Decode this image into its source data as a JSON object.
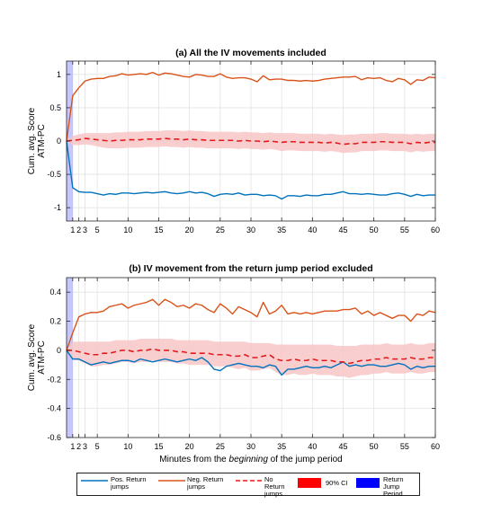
{
  "chart_data": [
    {
      "type": "line",
      "title": "(a) All the IV movements included",
      "ylabel_lines": [
        "Cum. avg. Score",
        "ATM-PC"
      ],
      "xlabel": "",
      "xlabel_suffix": "",
      "xlim": [
        0,
        60
      ],
      "ylim": [
        -1.2,
        1.2
      ],
      "xticks": [
        1,
        2,
        3,
        5,
        10,
        15,
        20,
        25,
        30,
        35,
        40,
        45,
        50,
        55,
        60
      ],
      "yticks": [
        -1,
        -0.5,
        0,
        0.5,
        1
      ],
      "ytick_labels": [
        "-1",
        "-0.5",
        "0",
        "0.5",
        "1"
      ],
      "grid": true,
      "jump_period": [
        0,
        1
      ],
      "series": [
        {
          "key": "pos",
          "color": "#0072BD",
          "values": [
            0,
            -0.7,
            -0.76,
            -0.77,
            -0.77,
            -0.79,
            -0.81,
            -0.79,
            -0.8,
            -0.78,
            -0.78,
            -0.79,
            -0.78,
            -0.77,
            -0.78,
            -0.77,
            -0.76,
            -0.78,
            -0.79,
            -0.78,
            -0.76,
            -0.78,
            -0.77,
            -0.79,
            -0.83,
            -0.8,
            -0.79,
            -0.8,
            -0.78,
            -0.81,
            -0.8,
            -0.8,
            -0.82,
            -0.81,
            -0.82,
            -0.87,
            -0.82,
            -0.82,
            -0.83,
            -0.81,
            -0.82,
            -0.82,
            -0.8,
            -0.8,
            -0.78,
            -0.76,
            -0.79,
            -0.79,
            -0.8,
            -0.79,
            -0.8,
            -0.81,
            -0.81,
            -0.79,
            -0.78,
            -0.8,
            -0.83,
            -0.8,
            -0.82,
            -0.81,
            -0.81
          ]
        },
        {
          "key": "neg",
          "color": "#D95319",
          "values": [
            0,
            0.68,
            0.8,
            0.9,
            0.93,
            0.94,
            0.94,
            0.97,
            0.98,
            1.01,
            0.99,
            1.0,
            1.01,
            1.0,
            1.03,
            0.99,
            1.02,
            1.01,
            0.99,
            0.97,
            0.96,
            1.0,
            0.99,
            0.97,
            0.97,
            1.01,
            0.96,
            0.94,
            0.95,
            0.95,
            0.93,
            0.89,
            0.98,
            0.92,
            0.93,
            0.93,
            0.91,
            0.91,
            0.9,
            0.91,
            0.9,
            0.91,
            0.93,
            0.94,
            0.95,
            0.96,
            0.96,
            0.97,
            0.92,
            0.95,
            0.94,
            0.95,
            0.91,
            0.89,
            0.94,
            0.92,
            0.85,
            0.92,
            0.91,
            0.96,
            0.95
          ]
        },
        {
          "key": "none",
          "color": "#E31A1C",
          "dashed": true,
          "values": [
            0,
            0.01,
            0.02,
            0.04,
            0.03,
            0.02,
            0.01,
            0.0,
            0.01,
            0.01,
            0.02,
            0.02,
            0.02,
            0.03,
            0.03,
            0.03,
            0.04,
            0.03,
            0.03,
            0.02,
            0.03,
            0.02,
            0.02,
            0.01,
            0.01,
            0.01,
            0.01,
            0.01,
            0.0,
            0.01,
            0.0,
            0.0,
            -0.01,
            0.0,
            -0.01,
            -0.02,
            -0.01,
            -0.01,
            -0.02,
            -0.02,
            -0.02,
            -0.02,
            -0.03,
            -0.02,
            -0.03,
            -0.05,
            -0.04,
            -0.04,
            -0.02,
            -0.02,
            -0.02,
            -0.01,
            -0.01,
            -0.02,
            -0.02,
            -0.02,
            -0.04,
            -0.02,
            -0.03,
            -0.02,
            -0.02
          ]
        },
        {
          "key": "ci",
          "color": "#F7C6C7",
          "upper": [
            0,
            0.08,
            0.1,
            0.12,
            0.12,
            0.12,
            0.12,
            0.12,
            0.13,
            0.13,
            0.14,
            0.14,
            0.14,
            0.15,
            0.15,
            0.15,
            0.16,
            0.16,
            0.16,
            0.15,
            0.16,
            0.15,
            0.15,
            0.14,
            0.14,
            0.14,
            0.14,
            0.14,
            0.13,
            0.14,
            0.13,
            0.13,
            0.12,
            0.13,
            0.12,
            0.12,
            0.12,
            0.12,
            0.11,
            0.11,
            0.11,
            0.11,
            0.1,
            0.11,
            0.1,
            0.09,
            0.1,
            0.1,
            0.11,
            0.11,
            0.11,
            0.12,
            0.12,
            0.11,
            0.11,
            0.11,
            0.1,
            0.11,
            0.1,
            0.11,
            0.11
          ],
          "lower": [
            0,
            -0.06,
            -0.06,
            -0.05,
            -0.06,
            -0.08,
            -0.1,
            -0.11,
            -0.11,
            -0.11,
            -0.1,
            -0.1,
            -0.1,
            -0.09,
            -0.09,
            -0.09,
            -0.08,
            -0.09,
            -0.09,
            -0.1,
            -0.09,
            -0.1,
            -0.1,
            -0.11,
            -0.11,
            -0.11,
            -0.11,
            -0.11,
            -0.12,
            -0.11,
            -0.12,
            -0.12,
            -0.13,
            -0.12,
            -0.13,
            -0.15,
            -0.14,
            -0.14,
            -0.15,
            -0.15,
            -0.15,
            -0.15,
            -0.16,
            -0.15,
            -0.16,
            -0.18,
            -0.17,
            -0.17,
            -0.15,
            -0.15,
            -0.15,
            -0.14,
            -0.14,
            -0.15,
            -0.15,
            -0.15,
            -0.17,
            -0.15,
            -0.16,
            -0.15,
            -0.15
          ]
        }
      ]
    },
    {
      "type": "line",
      "title": "(b) IV movement from the return jump period excluded",
      "ylabel_lines": [
        "Cum. avg. Score",
        "ATM-PC"
      ],
      "xlabel": "Minutes from the ",
      "xlabel_italic": "beginning",
      "xlabel_suffix": " of the jump period",
      "xlim": [
        0,
        60
      ],
      "ylim": [
        -0.6,
        0.5
      ],
      "xticks": [
        1,
        2,
        3,
        5,
        10,
        15,
        20,
        25,
        30,
        35,
        40,
        45,
        50,
        55,
        60
      ],
      "yticks": [
        -0.6,
        -0.4,
        -0.2,
        0,
        0.2,
        0.4
      ],
      "ytick_labels": [
        "-0.6",
        "-0.4",
        "-0.2",
        "0",
        "0.2",
        "0.4"
      ],
      "grid": true,
      "jump_period": [
        0,
        1
      ],
      "series": [
        {
          "key": "pos",
          "color": "#0072BD",
          "values": [
            0,
            -0.06,
            -0.06,
            -0.08,
            -0.1,
            -0.09,
            -0.08,
            -0.09,
            -0.08,
            -0.07,
            -0.07,
            -0.08,
            -0.06,
            -0.07,
            -0.08,
            -0.07,
            -0.06,
            -0.07,
            -0.08,
            -0.07,
            -0.06,
            -0.07,
            -0.05,
            -0.08,
            -0.13,
            -0.14,
            -0.11,
            -0.1,
            -0.09,
            -0.1,
            -0.11,
            -0.11,
            -0.12,
            -0.1,
            -0.11,
            -0.17,
            -0.13,
            -0.13,
            -0.12,
            -0.11,
            -0.12,
            -0.12,
            -0.11,
            -0.12,
            -0.1,
            -0.08,
            -0.11,
            -0.1,
            -0.11,
            -0.1,
            -0.1,
            -0.11,
            -0.11,
            -0.1,
            -0.09,
            -0.1,
            -0.13,
            -0.11,
            -0.12,
            -0.11,
            -0.11
          ]
        },
        {
          "key": "neg",
          "color": "#D95319",
          "values": [
            0,
            0.12,
            0.23,
            0.25,
            0.26,
            0.26,
            0.27,
            0.3,
            0.31,
            0.32,
            0.29,
            0.31,
            0.32,
            0.33,
            0.35,
            0.31,
            0.35,
            0.33,
            0.3,
            0.31,
            0.29,
            0.32,
            0.31,
            0.28,
            0.26,
            0.32,
            0.29,
            0.25,
            0.3,
            0.28,
            0.26,
            0.23,
            0.33,
            0.25,
            0.27,
            0.31,
            0.25,
            0.26,
            0.25,
            0.26,
            0.25,
            0.26,
            0.27,
            0.27,
            0.27,
            0.28,
            0.28,
            0.29,
            0.25,
            0.27,
            0.24,
            0.26,
            0.24,
            0.22,
            0.24,
            0.24,
            0.2,
            0.25,
            0.24,
            0.27,
            0.26
          ]
        },
        {
          "key": "none",
          "color": "#E31A1C",
          "dashed": true,
          "values": [
            0,
            0.0,
            -0.01,
            -0.02,
            -0.03,
            -0.03,
            -0.02,
            -0.02,
            -0.01,
            0.0,
            0.0,
            -0.01,
            0.0,
            0.0,
            0.01,
            0.0,
            0.0,
            0.0,
            -0.01,
            -0.01,
            -0.02,
            -0.02,
            -0.02,
            -0.02,
            -0.03,
            -0.03,
            -0.03,
            -0.04,
            -0.04,
            -0.03,
            -0.05,
            -0.05,
            -0.04,
            -0.03,
            -0.06,
            -0.07,
            -0.07,
            -0.06,
            -0.07,
            -0.07,
            -0.06,
            -0.07,
            -0.07,
            -0.07,
            -0.08,
            -0.08,
            -0.09,
            -0.08,
            -0.07,
            -0.07,
            -0.06,
            -0.06,
            -0.05,
            -0.06,
            -0.06,
            -0.06,
            -0.05,
            -0.06,
            -0.06,
            -0.05,
            -0.05
          ]
        },
        {
          "key": "ci",
          "color": "#F7C6C7",
          "upper": [
            0,
            0.06,
            0.06,
            0.06,
            0.06,
            0.06,
            0.06,
            0.06,
            0.07,
            0.07,
            0.07,
            0.07,
            0.08,
            0.08,
            0.08,
            0.08,
            0.08,
            0.08,
            0.07,
            0.07,
            0.07,
            0.07,
            0.07,
            0.07,
            0.06,
            0.06,
            0.06,
            0.06,
            0.06,
            0.06,
            0.05,
            0.05,
            0.05,
            0.05,
            0.04,
            0.04,
            0.04,
            0.04,
            0.04,
            0.04,
            0.04,
            0.04,
            0.04,
            0.04,
            0.03,
            0.03,
            0.03,
            0.03,
            0.04,
            0.04,
            0.04,
            0.04,
            0.05,
            0.04,
            0.04,
            0.04,
            0.05,
            0.04,
            0.04,
            0.05,
            0.05
          ],
          "lower": [
            0,
            -0.06,
            -0.07,
            -0.09,
            -0.11,
            -0.11,
            -0.1,
            -0.1,
            -0.09,
            -0.08,
            -0.08,
            -0.09,
            -0.08,
            -0.08,
            -0.07,
            -0.08,
            -0.08,
            -0.08,
            -0.09,
            -0.09,
            -0.1,
            -0.1,
            -0.1,
            -0.1,
            -0.11,
            -0.11,
            -0.11,
            -0.12,
            -0.13,
            -0.12,
            -0.14,
            -0.14,
            -0.13,
            -0.12,
            -0.15,
            -0.17,
            -0.17,
            -0.16,
            -0.17,
            -0.17,
            -0.16,
            -0.17,
            -0.17,
            -0.17,
            -0.18,
            -0.18,
            -0.19,
            -0.18,
            -0.17,
            -0.17,
            -0.16,
            -0.16,
            -0.15,
            -0.16,
            -0.16,
            -0.16,
            -0.15,
            -0.16,
            -0.16,
            -0.15,
            -0.15
          ]
        }
      ]
    }
  ],
  "legend": {
    "pos": "Pos. Return\njumps",
    "neg": "Neg. Return\njumps",
    "none": "No Return\njumps",
    "ci": "90% CI",
    "jump": "Return\nJump Period",
    "ci_swatch_color": "#FF0000",
    "jump_swatch_color": "#0000FF"
  }
}
